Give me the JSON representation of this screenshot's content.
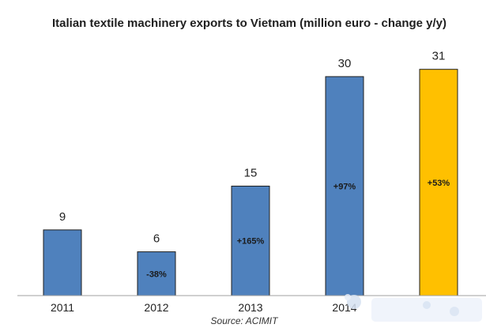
{
  "chart_data": {
    "type": "bar",
    "title": "Italian textile machinery exports to Vietnam (million euro - change y/y)",
    "categories": [
      "2011",
      "2012",
      "2013",
      "2014",
      ""
    ],
    "values": [
      9,
      6,
      15,
      30,
      31
    ],
    "value_labels": [
      "9",
      "6",
      "15",
      "30",
      "31"
    ],
    "change_labels": [
      "",
      "-38%",
      "+165%",
      "+97%",
      "+53%"
    ],
    "bar_colors": [
      "#4f81bd",
      "#4f81bd",
      "#4f81bd",
      "#4f81bd",
      "#ffc000"
    ],
    "ylim": [
      0,
      34
    ],
    "grid": false,
    "legend": "none",
    "source": "Source: ACIMIT"
  }
}
